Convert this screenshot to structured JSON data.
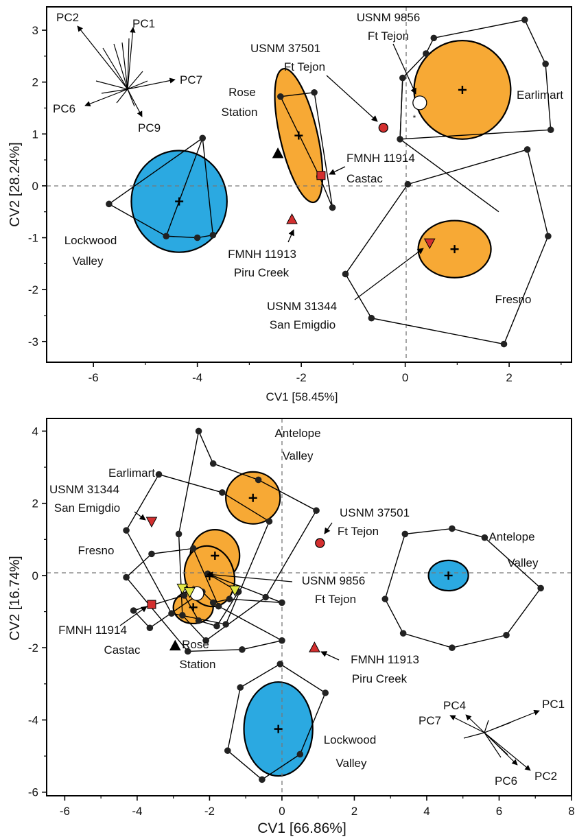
{
  "colors": {
    "orange": "#F7A935",
    "blue": "#2BA9E1",
    "red": "#D32F2F",
    "yellow": "#E2E845",
    "black": "#000000",
    "point": "#222222"
  },
  "chart_data": [
    {
      "type": "scatter",
      "xlabel": "CV1 [58.45%]",
      "ylabel": "CV2 [28.24%]",
      "xlim": [
        -6.9,
        3.2
      ],
      "ylim": [
        -3.4,
        3.45
      ],
      "xticks": [
        -6,
        -4,
        -2,
        0,
        2
      ],
      "yticks": [
        -3,
        -2,
        -1,
        0,
        1,
        2,
        3
      ],
      "hulls": [
        {
          "group": "Lockwood Valley",
          "points": [
            [
              -5.7,
              -0.35
            ],
            [
              -4.6,
              -0.97
            ],
            [
              -4.0,
              -1.0
            ],
            [
              -3.7,
              -0.95
            ],
            [
              -3.9,
              0.92
            ]
          ]
        },
        {
          "group": "Rose Station",
          "points": [
            [
              -2.4,
              1.72
            ],
            [
              -1.75,
              1.8
            ],
            [
              -1.4,
              -0.42
            ],
            [
              -1.65,
              0.18
            ]
          ]
        },
        {
          "group": "Earlimart",
          "points": [
            [
              -0.1,
              0.9
            ],
            [
              -0.05,
              2.08
            ],
            [
              0.4,
              2.55
            ],
            [
              0.55,
              2.85
            ],
            [
              2.3,
              3.2
            ],
            [
              2.7,
              2.35
            ],
            [
              2.8,
              1.08
            ]
          ]
        },
        {
          "group": "Fresno",
          "points": [
            [
              0.05,
              0.03
            ],
            [
              2.35,
              0.7
            ],
            [
              2.75,
              -0.97
            ],
            [
              1.9,
              -3.05
            ],
            [
              -0.65,
              -2.55
            ],
            [
              -1.15,
              -1.7
            ]
          ]
        }
      ],
      "extra_edges": [
        {
          "group": "Lockwood Valley",
          "from": [
            -4.6,
            -0.97
          ],
          "to": [
            -3.9,
            0.92
          ]
        },
        {
          "group": "Earlimart",
          "from": [
            -0.05,
            2.08
          ],
          "to": [
            -0.1,
            0.9
          ]
        },
        {
          "group": "Fresno",
          "from": [
            -0.1,
            0.9
          ],
          "to": [
            1.8,
            -0.5
          ]
        }
      ],
      "ellipses": [
        {
          "group": "Lockwood Valley",
          "color": "blue",
          "cx": -4.35,
          "cy": -0.3,
          "rx": 0.92,
          "ry": 0.98,
          "angle": 0
        },
        {
          "group": "Rose Station",
          "color": "orange",
          "cx": -2.05,
          "cy": 0.97,
          "rx": 0.36,
          "ry": 1.32,
          "angle": -13
        },
        {
          "group": "Earlimart",
          "color": "orange",
          "cx": 1.1,
          "cy": 1.85,
          "rx": 0.93,
          "ry": 0.95,
          "angle": 0
        },
        {
          "group": "Fresno",
          "color": "orange",
          "cx": 0.95,
          "cy": -1.22,
          "rx": 0.7,
          "ry": 0.55,
          "angle": 0
        }
      ],
      "specimens": [
        {
          "label": "USNM 37501 Ft Tejon",
          "shape": "circle",
          "color": "red",
          "x": -0.42,
          "y": 1.12
        },
        {
          "label": "USNM 9856 Ft Tejon",
          "shape": "circle",
          "color": "white",
          "x": 0.28,
          "y": 1.6
        },
        {
          "label": "FMNH 11914 Castac",
          "shape": "square",
          "color": "red",
          "x": -1.62,
          "y": 0.2
        },
        {
          "label": "FMNH 11913 Piru Creek",
          "shape": "triangle-up",
          "color": "red",
          "x": -2.18,
          "y": -0.65
        },
        {
          "label": "USNM 31344 San Emigdio",
          "shape": "triangle-down",
          "color": "red",
          "x": 0.47,
          "y": -1.1
        },
        {
          "label": "",
          "shape": "triangle-up",
          "color": "black",
          "x": -2.45,
          "y": 0.62
        }
      ],
      "group_labels": [
        "Rose",
        "Station",
        "Earlimart",
        "Lockwood",
        "Valley",
        "Fresno"
      ],
      "specimen_labels": [
        "USNM 9856",
        "Ft Tejon",
        "USNM 37501",
        "Ft Tejon",
        "FMNH 11914",
        "Castac",
        "FMNH 11913",
        "Piru Creek",
        "USNM 31344",
        "San Emigdio"
      ],
      "loading_labels": [
        "PC2",
        "PC1",
        "PC7",
        "PC6",
        "PC9"
      ]
    },
    {
      "type": "scatter",
      "xlabel": "CV1 [66.86%]",
      "ylabel": "CV2 [16.74%]",
      "xlim": [
        -6.5,
        8.0
      ],
      "ylim": [
        -6.1,
        4.35
      ],
      "xticks": [
        -6,
        -4,
        -2,
        0,
        2,
        4,
        6,
        8
      ],
      "yticks": [
        -6,
        -4,
        -2,
        0,
        2,
        4
      ],
      "hulls": [
        {
          "group": "Antelope Valley (east)",
          "points": [
            [
              2.85,
              -0.65
            ],
            [
              3.4,
              1.15
            ],
            [
              4.7,
              1.3
            ],
            [
              5.6,
              1.05
            ],
            [
              7.15,
              -0.35
            ],
            [
              6.2,
              -1.65
            ],
            [
              4.7,
              -2.0
            ],
            [
              3.35,
              -1.6
            ]
          ]
        },
        {
          "group": "Lockwood Valley",
          "points": [
            [
              -0.05,
              -2.45
            ],
            [
              1.2,
              -3.25
            ],
            [
              0.5,
              -4.95
            ],
            [
              -0.55,
              -5.65
            ],
            [
              -1.5,
              -4.85
            ],
            [
              -1.15,
              -3.1
            ]
          ]
        },
        {
          "group": "Antelope Valley",
          "points": [
            [
              -2.3,
              4.0
            ],
            [
              -1.9,
              3.1
            ],
            [
              -0.65,
              2.65
            ],
            [
              0.95,
              1.8
            ],
            [
              -0.45,
              -0.6
            ],
            [
              -2.1,
              -1.8
            ],
            [
              -2.75,
              -1.1
            ],
            [
              -2.85,
              1.15
            ]
          ]
        },
        {
          "group": "Earlimart",
          "points": [
            [
              -3.4,
              2.8
            ],
            [
              -1.65,
              2.3
            ],
            [
              -0.35,
              1.5
            ],
            [
              -1.55,
              -1.35
            ],
            [
              -3.05,
              -1.05
            ],
            [
              -4.3,
              1.25
            ]
          ]
        },
        {
          "group": "Fresno",
          "points": [
            [
              -3.6,
              0.6
            ],
            [
              -2.45,
              0.75
            ],
            [
              -1.75,
              -0.85
            ],
            [
              0.0,
              -1.8
            ],
            [
              -1.1,
              -2.05
            ],
            [
              -2.6,
              -2.1
            ],
            [
              -4.3,
              -0.05
            ]
          ]
        },
        {
          "group": "Rose Station",
          "points": [
            [
              -2.7,
              -0.55
            ],
            [
              -2.3,
              -1.25
            ],
            [
              -1.8,
              -1.4
            ],
            [
              -1.2,
              -0.45
            ],
            [
              -2.05,
              0.05
            ],
            [
              0.0,
              -0.75
            ],
            [
              -1.45,
              -0.65
            ],
            [
              -1.9,
              -0.75
            ],
            [
              -2.2,
              -0.45
            ],
            [
              -3.65,
              -1.45
            ],
            [
              -4.1,
              -0.97
            ]
          ]
        }
      ],
      "ellipses": [
        {
          "group": "Antelope Valley (east)",
          "color": "blue",
          "cx": 4.6,
          "cy": 0.0,
          "rx": 0.55,
          "ry": 0.42,
          "angle": 0
        },
        {
          "group": "Lockwood Valley",
          "color": "blue",
          "cx": -0.1,
          "cy": -4.25,
          "rx": 0.95,
          "ry": 1.3,
          "angle": 0
        },
        {
          "group": "Antelope Valley",
          "color": "orange",
          "cx": -0.8,
          "cy": 2.15,
          "rx": 0.75,
          "ry": 0.72,
          "angle": 0
        },
        {
          "group": "Earlimart",
          "color": "orange",
          "cx": -1.85,
          "cy": 0.55,
          "rx": 0.68,
          "ry": 0.72,
          "angle": 0
        },
        {
          "group": "Fresno",
          "color": "orange",
          "cx": -2.45,
          "cy": -0.88,
          "rx": 0.55,
          "ry": 0.45,
          "angle": 0
        },
        {
          "group": "Rose Station",
          "color": "orange",
          "cx": -2.0,
          "cy": -0.02,
          "rx": 0.68,
          "ry": 0.85,
          "angle": -15
        }
      ],
      "specimens": [
        {
          "label": "USNM 31344 San Emigdio",
          "shape": "triangle-down",
          "color": "red",
          "x": -3.6,
          "y": 1.5
        },
        {
          "label": "USNM 37501 Ft Tejon",
          "shape": "circle",
          "color": "red",
          "x": 1.05,
          "y": 0.9
        },
        {
          "label": "USNM 9856 Ft Tejon",
          "shape": "circle",
          "color": "white",
          "x": -2.35,
          "y": -0.5
        },
        {
          "label": "FMNH 11914 Castac",
          "shape": "square",
          "color": "red",
          "x": -3.6,
          "y": -0.8
        },
        {
          "label": "FMNH 11913 Piru Creek",
          "shape": "triangle-up",
          "color": "red",
          "x": 0.9,
          "y": -2.0
        },
        {
          "label": "",
          "shape": "triangle-up",
          "color": "black",
          "x": -2.95,
          "y": -1.95
        },
        {
          "label": "",
          "shape": "triangle-down",
          "color": "yellow",
          "x": -2.75,
          "y": -0.35
        },
        {
          "label": "",
          "shape": "triangle-down",
          "color": "yellow",
          "x": -2.55,
          "y": -0.45
        },
        {
          "label": "",
          "shape": "triangle-down",
          "color": "yellow",
          "x": -1.3,
          "y": -0.4
        }
      ],
      "group_labels": [
        "Antelope",
        "Valley",
        "Earlimart",
        "Fresno",
        "Antelope",
        "Valley",
        "Rose",
        "Station",
        "Lockwood",
        "Valley"
      ],
      "specimen_labels": [
        "USNM 31344",
        "San Emigdio",
        "USNM 37501",
        "Ft Tejon",
        "USNM 9856",
        "Ft Tejon",
        "FMNH 11914",
        "Castac",
        "FMNH 11913",
        "Piru Creek"
      ],
      "loading_labels": [
        "PC4",
        "PC1",
        "PC7",
        "PC6",
        "PC2"
      ]
    }
  ]
}
